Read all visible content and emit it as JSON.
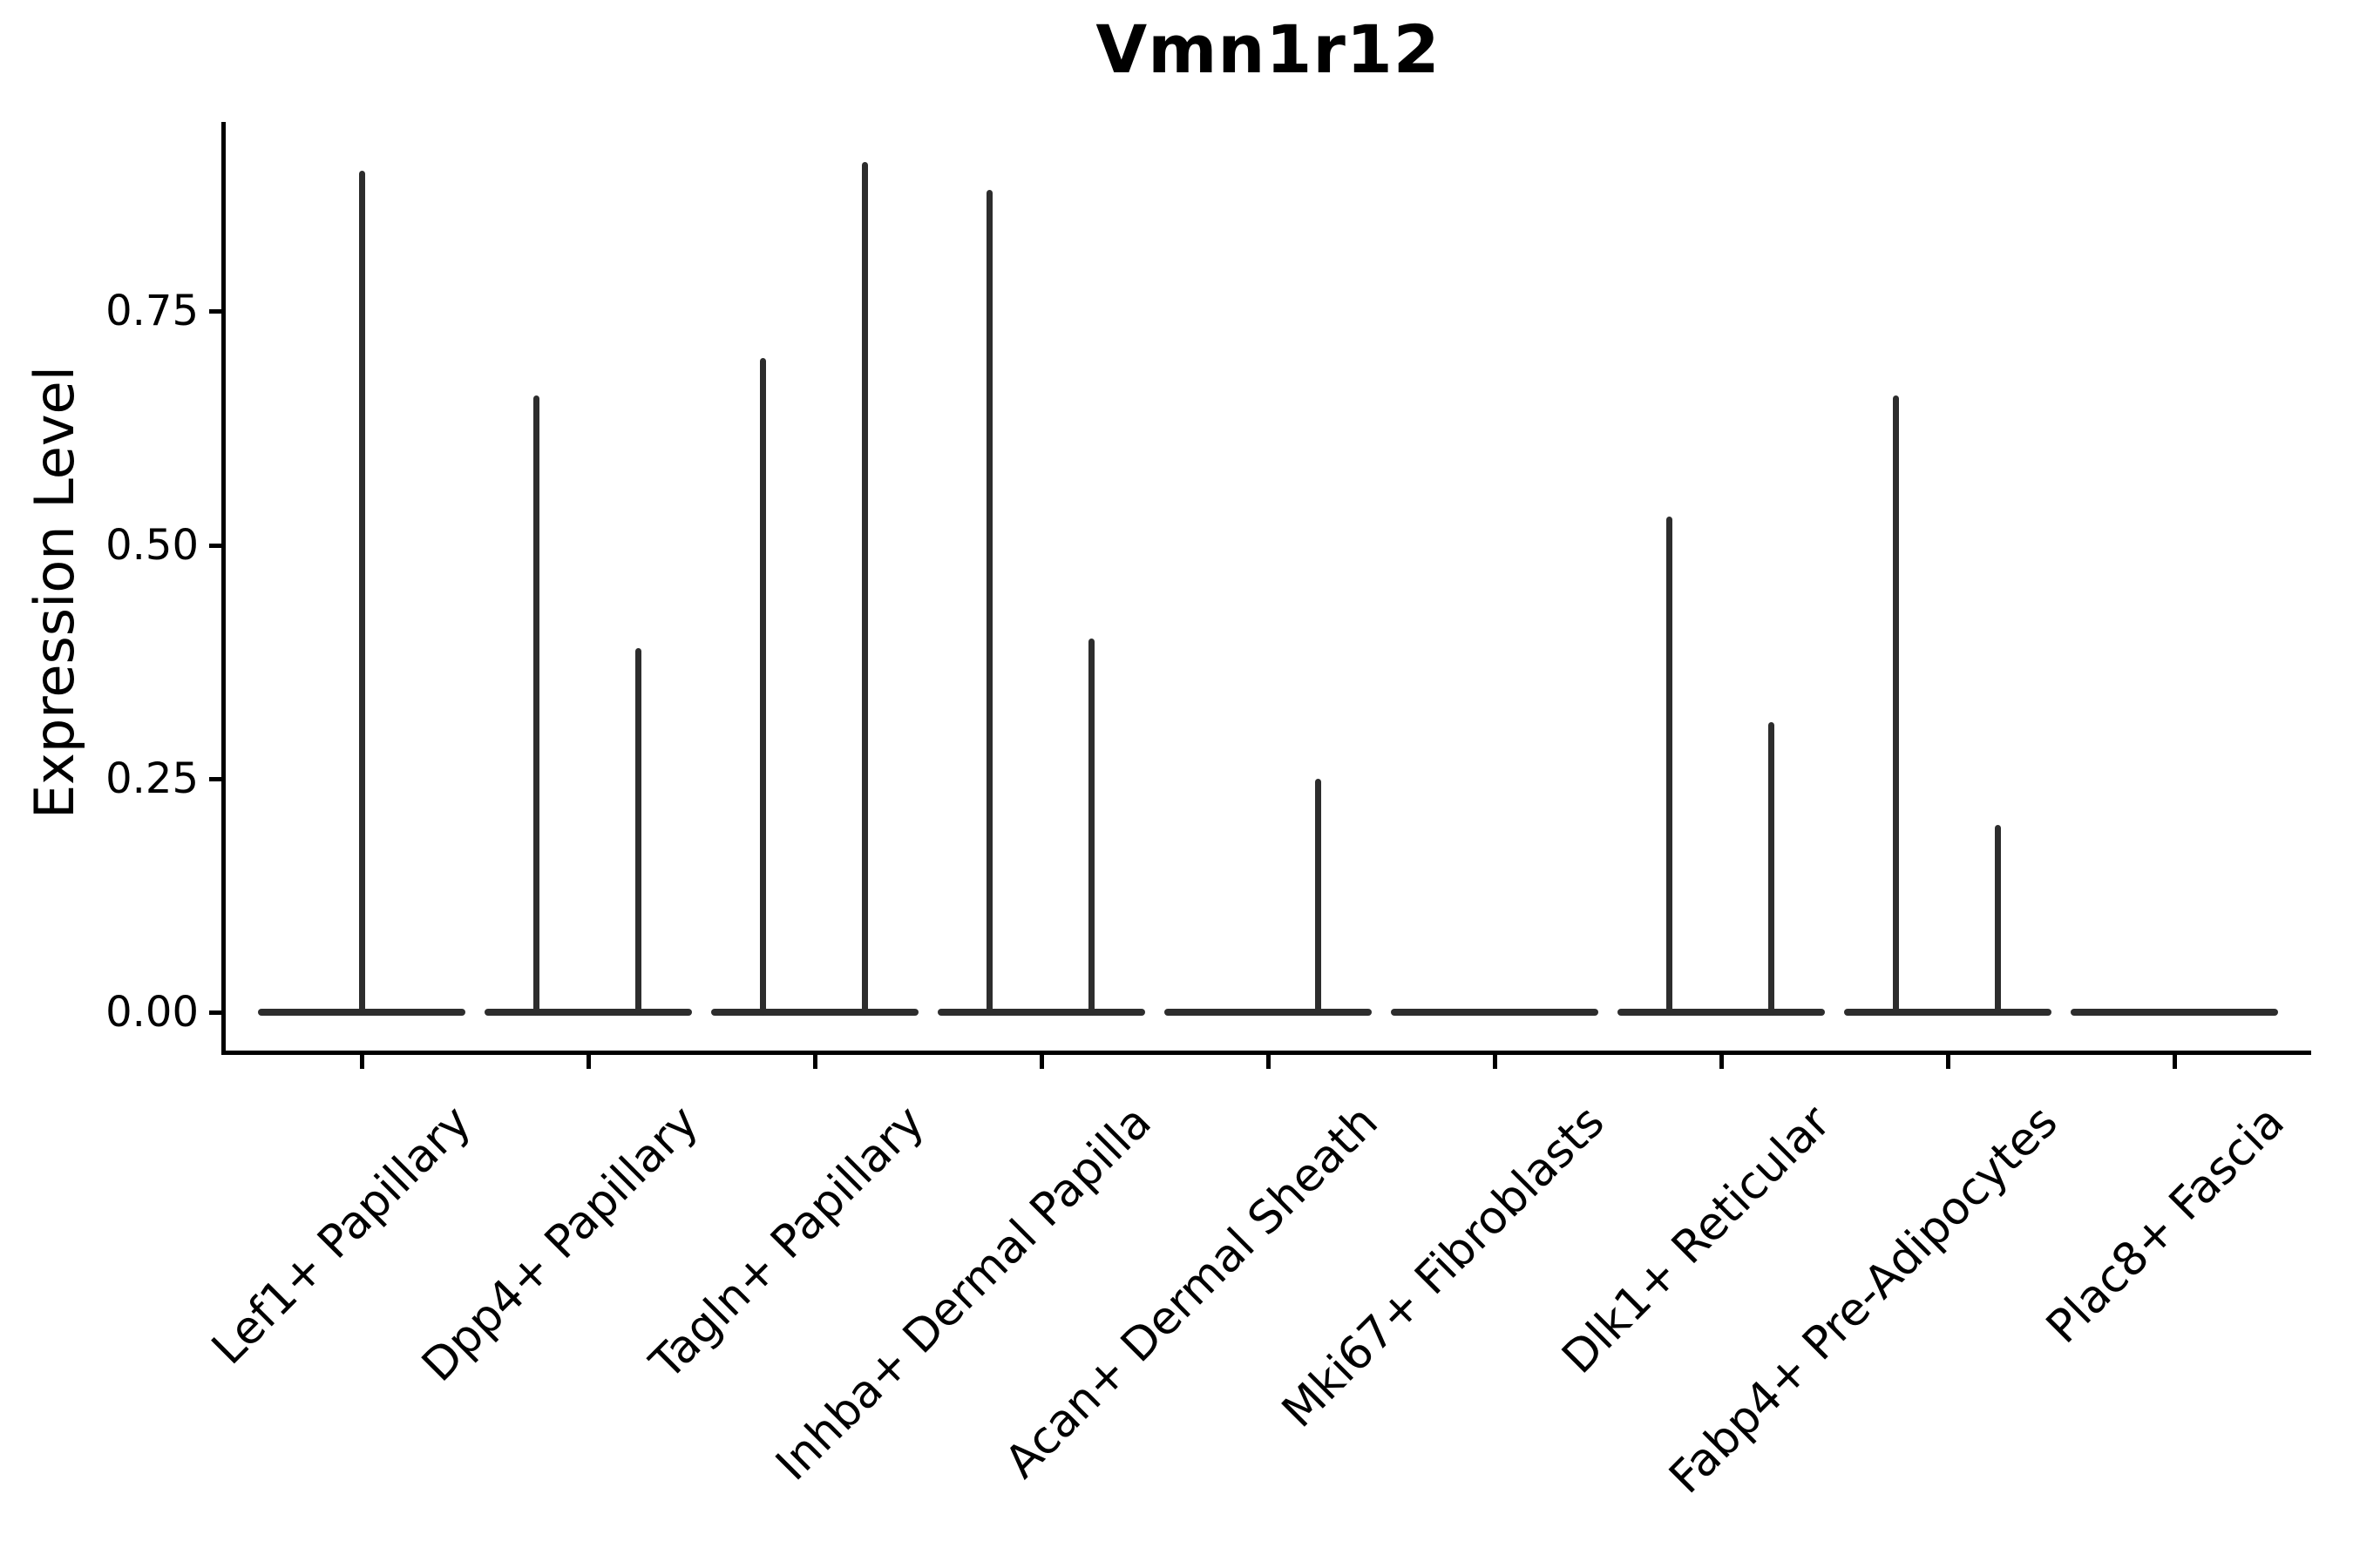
{
  "title": "Vmn1r12",
  "y_axis": {
    "label": "Expression Level",
    "tick_labels": [
      "0.00",
      "0.25",
      "0.50",
      "0.75"
    ],
    "tick_values": [
      0,
      0.25,
      0.5,
      0.75
    ]
  },
  "chart_data": {
    "type": "violin",
    "title": "Vmn1r12",
    "xlabel": "",
    "ylabel": "Expression Level",
    "ylim": [
      0,
      0.95
    ],
    "yticks": [
      0,
      0.25,
      0.5,
      0.75
    ],
    "grid": false,
    "legend": "none",
    "description": "Single-gene expression violin plot; each cell type shows a flat violin body at 0 with thin spikes rising to the maximum expression of sub-violins.",
    "categories": [
      "Lef1+ Papillary",
      "Dpp4+ Papillary",
      "Tagln+ Papillary",
      "Inhba+ Dermal Papilla",
      "Acan+ Dermal Sheath",
      "Mki67+ Fibroblasts",
      "Dlk1+ Reticular",
      "Fabp4+ Pre-Adipocytes",
      "Plac8+ Fascia"
    ],
    "violins": [
      {
        "category": "Lef1+ Papillary",
        "spikes": [
          {
            "position": "center",
            "max": 0.9
          }
        ]
      },
      {
        "category": "Dpp4+ Papillary",
        "spikes": [
          {
            "position": "left",
            "max": 0.66
          },
          {
            "position": "right",
            "max": 0.39
          }
        ]
      },
      {
        "category": "Tagln+ Papillary",
        "spikes": [
          {
            "position": "left",
            "max": 0.7
          },
          {
            "position": "right",
            "max": 0.91
          }
        ]
      },
      {
        "category": "Inhba+ Dermal Papilla",
        "spikes": [
          {
            "position": "left",
            "max": 0.88
          },
          {
            "position": "right",
            "max": 0.4
          }
        ]
      },
      {
        "category": "Acan+ Dermal Sheath",
        "spikes": [
          {
            "position": "right",
            "max": 0.25
          }
        ]
      },
      {
        "category": "Mki67+ Fibroblasts",
        "spikes": []
      },
      {
        "category": "Dlk1+ Reticular",
        "spikes": [
          {
            "position": "left",
            "max": 0.53
          },
          {
            "position": "right",
            "max": 0.31
          }
        ]
      },
      {
        "category": "Fabp4+ Pre-Adipocytes",
        "spikes": [
          {
            "position": "left",
            "max": 0.66
          },
          {
            "position": "right",
            "max": 0.2
          }
        ]
      },
      {
        "category": "Plac8+ Fascia",
        "spikes": []
      }
    ],
    "colors": {
      "violin": "#2d2d2d",
      "axis": "#000000",
      "text": "#000000"
    }
  }
}
